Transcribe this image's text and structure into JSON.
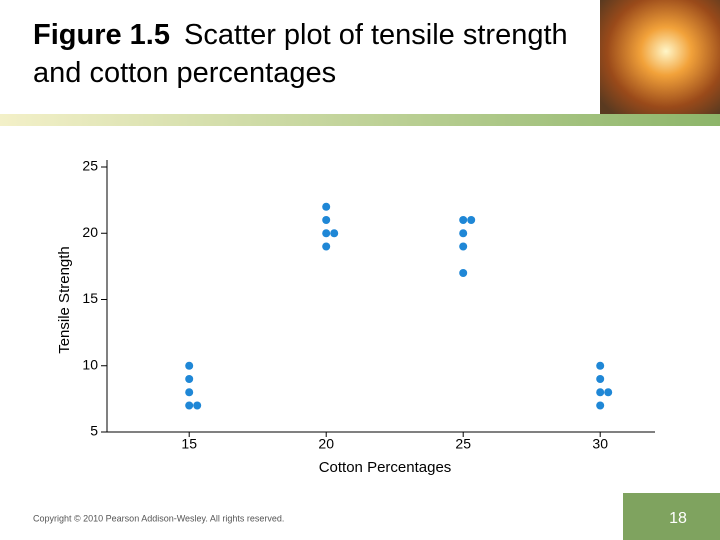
{
  "slide": {
    "title_bold": "Figure 1.5",
    "title": "Scatter plot of tensile strength and cotton percentages",
    "copyright": "Copyright © 2010 Pearson Addison-Wesley. All rights reserved.",
    "page_number": "18"
  },
  "chart_data": {
    "type": "scatter",
    "xlabel": "Cotton Percentages",
    "ylabel": "Tensile Strength",
    "x": [
      15,
      15,
      15,
      15,
      15,
      20,
      20,
      20,
      20,
      20,
      25,
      25,
      25,
      25,
      25,
      30,
      30,
      30,
      30,
      30
    ],
    "values": [
      10,
      9,
      8,
      7,
      7,
      22,
      21,
      20,
      20,
      19,
      21,
      21,
      20,
      19,
      17,
      10,
      9,
      8,
      8,
      7
    ],
    "color": "#1f87d6",
    "xlim": [
      12,
      32
    ],
    "ylim": [
      5,
      25
    ],
    "xticks": [
      15,
      20,
      25,
      30
    ],
    "yticks": [
      5,
      10,
      15,
      20,
      25
    ]
  }
}
